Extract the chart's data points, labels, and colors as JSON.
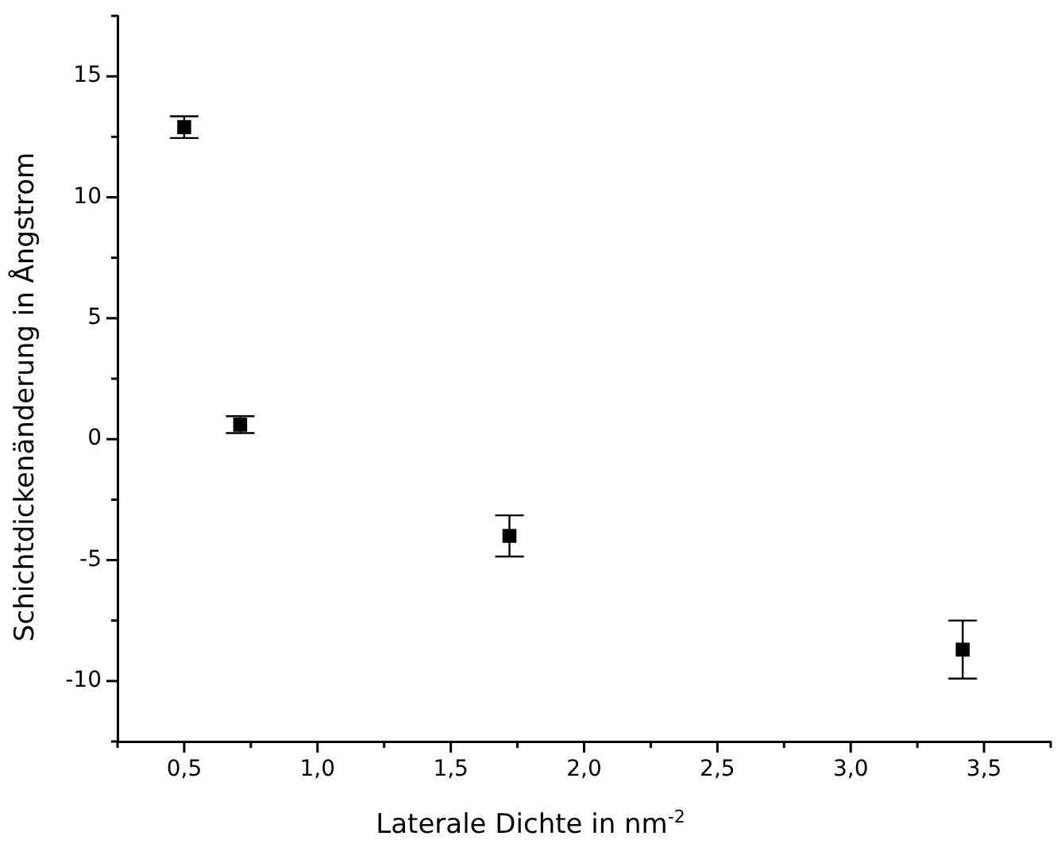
{
  "chart_data": {
    "type": "scatter",
    "xlabel": "Laterale Dichte in nm$^{-2}$",
    "ylabel": "Schichtdickenänderung in Ångstrom",
    "x": [
      0.5,
      0.71,
      1.72,
      3.42
    ],
    "values": [
      12.9,
      0.6,
      -4.0,
      -8.7
    ],
    "errors": [
      0.45,
      0.35,
      0.85,
      1.2
    ],
    "color": "#000000",
    "marker": "square",
    "grid": false,
    "legend": false,
    "xlim": [
      0.25,
      3.75
    ],
    "xticks": [
      {
        "value": 0.25,
        "label": null
      },
      {
        "value": 0.5,
        "label": "0,5"
      },
      {
        "value": 0.75,
        "label": null
      },
      {
        "value": 1.0,
        "label": "1,0"
      },
      {
        "value": 1.25,
        "label": null
      },
      {
        "value": 1.5,
        "label": "1,5"
      },
      {
        "value": 1.75,
        "label": null
      },
      {
        "value": 2.0,
        "label": "2,0"
      },
      {
        "value": 2.25,
        "label": null
      },
      {
        "value": 2.5,
        "label": "2,5"
      },
      {
        "value": 2.75,
        "label": null
      },
      {
        "value": 3.0,
        "label": "3,0"
      },
      {
        "value": 3.25,
        "label": null
      },
      {
        "value": 3.5,
        "label": "3,5"
      },
      {
        "value": 3.75,
        "label": null
      }
    ],
    "ylim": [
      -12.5,
      17.5
    ],
    "yticks": [
      {
        "value": -12.5,
        "label": null
      },
      -10,
      {
        "value": -7.5,
        "label": null
      },
      -5,
      {
        "value": -2.5,
        "label": null
      },
      0,
      {
        "value": 2.5,
        "label": null
      },
      5,
      {
        "value": 7.5,
        "label": null
      },
      10,
      {
        "value": 12.5,
        "label": null
      },
      15,
      {
        "value": 17.5,
        "label": null
      }
    ]
  }
}
